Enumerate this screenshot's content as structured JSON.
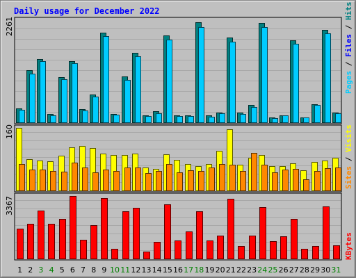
{
  "chart_data": {
    "type": "bar",
    "title": "Daily usage for December 2022",
    "categories": [
      "1",
      "2",
      "3",
      "4",
      "5",
      "6",
      "7",
      "8",
      "9",
      "10",
      "11",
      "12",
      "13",
      "14",
      "15",
      "16",
      "17",
      "18",
      "19",
      "20",
      "21",
      "22",
      "23",
      "24",
      "25",
      "26",
      "27",
      "28",
      "29",
      "30",
      "31"
    ],
    "weekend_days": [
      "3",
      "4",
      "10",
      "11",
      "17",
      "18",
      "24",
      "25",
      "31"
    ],
    "grid": true,
    "panels": [
      {
        "name": "pages-files-hits",
        "ymax_label": "2261",
        "ylim": [
          0,
          2261
        ],
        "legend": [
          {
            "label": "Pages",
            "color": "#00ccff"
          },
          {
            "label": "Files",
            "color": "#0000ff"
          },
          {
            "label": "Hits",
            "color": "#008080"
          }
        ],
        "series": [
          {
            "name": "Hits",
            "color": "#008080",
            "values": [
              310,
              1150,
              1400,
              180,
              1000,
              1360,
              290,
              620,
              1980,
              190,
              1010,
              1540,
              160,
              250,
              1920,
              160,
              160,
              2210,
              150,
              220,
              1880,
              210,
              380,
              2200,
              100,
              160,
              1820,
              110,
              400,
              2050,
              220
            ]
          },
          {
            "name": "Pages",
            "color": "#00ccff",
            "values": [
              280,
              1080,
              1350,
              160,
              950,
              1300,
              260,
              570,
              1900,
              170,
              940,
              1460,
              140,
              200,
              1830,
              140,
              140,
              2110,
              120,
              200,
              1790,
              190,
              340,
              2110,
              90,
              150,
              1740,
              100,
              380,
              1970,
              200
            ]
          }
        ]
      },
      {
        "name": "visits-sites",
        "ymax_label": "160",
        "ylim": [
          0,
          160
        ],
        "legend": [
          {
            "label": "Sites",
            "color": "#ff8800"
          },
          {
            "label": "Visits",
            "color": "#ffff00"
          }
        ],
        "series": [
          {
            "name": "Visits",
            "color": "#ffff00",
            "values": [
              160,
              80,
              77,
              75,
              88,
              110,
              113,
              108,
              94,
              90,
              90,
              94,
              59,
              55,
              92,
              79,
              68,
              63,
              67,
              101,
              156,
              66,
              84,
              91,
              62,
              63,
              69,
              52,
              73,
              77,
              84
            ]
          },
          {
            "name": "Sites",
            "color": "#ff8800",
            "values": [
              68,
              53,
              54,
              50,
              48,
              71,
              59,
              46,
              54,
              50,
              58,
              58,
              45,
              50,
              68,
              46,
              51,
              50,
              59,
              68,
              65,
              50,
              96,
              65,
              47,
              54,
              55,
              28,
              50,
              57,
              59
            ]
          }
        ]
      },
      {
        "name": "kbytes",
        "ymax_label": "3367",
        "ylim": [
          0,
          3367
        ],
        "legend": [
          {
            "label": "KBytes",
            "color": "#ff0000"
          }
        ],
        "series": [
          {
            "name": "KBytes",
            "color": "#ff0000",
            "values": [
              1590,
              1880,
              2600,
              1860,
              2150,
              3370,
              1000,
              1790,
              3270,
              510,
              2550,
              2730,
              370,
              910,
              2910,
              970,
              1450,
              2550,
              960,
              1220,
              3220,
              690,
              1250,
              2750,
              920,
              1180,
              2120,
              530,
              690,
              2800,
              700
            ]
          }
        ]
      }
    ]
  }
}
